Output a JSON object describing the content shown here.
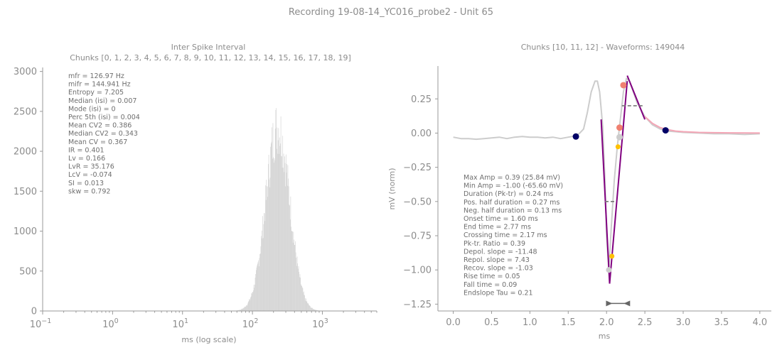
{
  "suptitle": "Recording 19-08-14_YC016_probe2 - Unit 65",
  "chart_data": [
    {
      "type": "bar",
      "title_line1": "Inter Spike Interval",
      "title_line2": "Chunks [0, 1, 2, 3, 4, 5, 6, 7, 8, 9, 10, 11, 12, 13, 14, 15, 16, 17, 18, 19]",
      "xlabel": "ms (log scale)",
      "ylabel": "",
      "xscale": "log",
      "xlim": [
        0.1,
        6000
      ],
      "ylim": [
        0,
        3050
      ],
      "xticks": [
        0.1,
        1,
        10,
        100,
        1000
      ],
      "xtick_labels": [
        "10",
        "10",
        "10",
        "10",
        "10"
      ],
      "xtick_exponents": [
        "−1",
        "0",
        "1",
        "2",
        "3"
      ],
      "yticks": [
        0,
        500,
        1000,
        1500,
        2000,
        2500,
        3000
      ],
      "ytick_labels": [
        "0",
        "500",
        "1000",
        "1500",
        "2000",
        "2500",
        "3000"
      ],
      "color": "#d3d3d3",
      "distribution": {
        "mode_ms": 230,
        "log10_sigma": 0.17,
        "peak_count": 2680
      },
      "stats": [
        "mfr = 126.97 Hz",
        "mifr = 144.941 Hz",
        "Entropy = 7.205",
        "Median (isi) = 0.007",
        "Mode (isi) = 0",
        "Perc 5th (isi) = 0.004",
        "Mean CV2 = 0.386",
        "Median CV2 = 0.343",
        "Mean CV = 0.367",
        "IR = 0.401",
        "Lv = 0.166",
        "LvR = 35.176",
        "LcV = -0.074",
        "SI = 0.013",
        "skw = 0.792"
      ]
    },
    {
      "type": "line",
      "title": "Chunks [10, 11, 12] - Waveforms: 149044",
      "xlabel": "ms",
      "ylabel": "mV (norm)",
      "xlim": [
        -0.2,
        4.15
      ],
      "ylim": [
        -1.3,
        0.49
      ],
      "xticks": [
        0,
        0.5,
        1,
        1.5,
        2,
        2.5,
        3,
        3.5,
        4
      ],
      "xtick_labels": [
        "0.0",
        "0.5",
        "1.0",
        "1.5",
        "2.0",
        "2.5",
        "3.0",
        "3.5",
        "4.0"
      ],
      "yticks": [
        0.25,
        0,
        -0.25,
        -0.5,
        -0.75,
        -1,
        -1.25
      ],
      "ytick_labels": [
        "0.25",
        "0.00",
        "−0.25",
        "−0.50",
        "−0.75",
        "−1.00",
        "−1.25"
      ],
      "series": [
        {
          "role": "waveform",
          "color": "#cccccc",
          "x": [
            0,
            0.1,
            0.2,
            0.3,
            0.4,
            0.5,
            0.6,
            0.7,
            0.8,
            0.9,
            1.0,
            1.1,
            1.2,
            1.3,
            1.4,
            1.5,
            1.6,
            1.65,
            1.7,
            1.75,
            1.8,
            1.85,
            1.88,
            1.91,
            1.95,
            1.98,
            2.0,
            2.03,
            2.06,
            2.1,
            2.14,
            2.18,
            2.22,
            2.26,
            2.3,
            2.35,
            2.4,
            2.5,
            2.6,
            2.7,
            2.8,
            2.9,
            3.0,
            3.2,
            3.4,
            3.6,
            3.8,
            4.0
          ],
          "y": [
            -0.03,
            -0.04,
            -0.04,
            -0.045,
            -0.04,
            -0.035,
            -0.03,
            -0.04,
            -0.03,
            -0.025,
            -0.03,
            -0.03,
            -0.035,
            -0.03,
            -0.04,
            -0.03,
            -0.02,
            0.0,
            0.03,
            0.15,
            0.3,
            0.38,
            0.38,
            0.3,
            0.05,
            -0.35,
            -0.75,
            -1.0,
            -0.7,
            -0.35,
            -0.1,
            0.1,
            0.3,
            0.4,
            0.38,
            0.3,
            0.22,
            0.12,
            0.06,
            0.03,
            0.015,
            0.01,
            0.005,
            0.0,
            -0.005,
            -0.005,
            -0.01,
            -0.005
          ]
        },
        {
          "role": "endslope-fit",
          "color": "#f4a6b6",
          "x": [
            2.5,
            2.6,
            2.7,
            2.8,
            2.9,
            3.0,
            3.2,
            3.4,
            3.6,
            3.8,
            4.0
          ],
          "y": [
            0.12,
            0.07,
            0.04,
            0.025,
            0.015,
            0.01,
            0.005,
            0.003,
            0.002,
            0.001,
            0.0
          ]
        },
        {
          "role": "depol-slope",
          "color": "#800080",
          "x": [
            1.93,
            2.04
          ],
          "y": [
            0.1,
            -1.1
          ]
        },
        {
          "role": "repol-slope",
          "color": "#800080",
          "x": [
            2.04,
            2.27
          ],
          "y": [
            -1.1,
            0.38
          ]
        },
        {
          "role": "recov-slope",
          "color": "#800080",
          "x": [
            2.27,
            2.5
          ],
          "y": [
            0.42,
            0.1
          ]
        },
        {
          "role": "pos-half-duration",
          "color": "#777777",
          "dashed": true,
          "x": [
            2.2,
            2.47
          ],
          "y": [
            0.2,
            0.2
          ]
        },
        {
          "role": "neg-half-duration",
          "color": "#777777",
          "dashed": true,
          "x": [
            1.98,
            2.11
          ],
          "y": [
            -0.5,
            -0.5
          ]
        }
      ],
      "markers": [
        {
          "role": "onset",
          "x": 1.6,
          "y": -0.025,
          "color": "#000066",
          "r": 4.5
        },
        {
          "role": "end",
          "x": 2.77,
          "y": 0.02,
          "color": "#000066",
          "r": 4.5
        },
        {
          "role": "peak",
          "x": 2.22,
          "y": 0.35,
          "color": "#f08070",
          "r": 4.5
        },
        {
          "role": "pre-peak",
          "x": 2.17,
          "y": 0.04,
          "color": "#f08070",
          "r": 4.5
        },
        {
          "role": "crossing",
          "x": 2.17,
          "y": -0.03,
          "color": "#cccccc",
          "r": 4.5
        },
        {
          "role": "rise-point",
          "x": 2.15,
          "y": -0.1,
          "color": "#ffc000",
          "r": 3.5
        },
        {
          "role": "fall-point",
          "x": 2.07,
          "y": -0.9,
          "color": "#ffc000",
          "r": 3.5
        },
        {
          "role": "trough",
          "x": 2.03,
          "y": -1.0,
          "color": "#cccccc",
          "r": 4
        }
      ],
      "duration_bar": {
        "x": [
          2.03,
          2.27
        ],
        "y": -1.245,
        "color": "#666666"
      },
      "stats": [
        "Max Amp = 0.39 (25.84 mV)",
        "Min Amp = -1.00 (-65.60 mV)",
        "Duration (Pk-tr) = 0.24 ms",
        "Pos. half duration = 0.27 ms",
        "Neg. half duration = 0.13 ms",
        "Onset time = 1.60 ms",
        "End time = 2.77 ms",
        "Crossing time = 2.17 ms",
        "Pk-tr. Ratio = 0.39",
        "Depol. slope = -11.48",
        "Repol. slope = 7.43",
        "Recov. slope = -1.03",
        "Rise time = 0.05",
        "Fall time = 0.09",
        "Endslope Tau = 0.21"
      ]
    }
  ]
}
